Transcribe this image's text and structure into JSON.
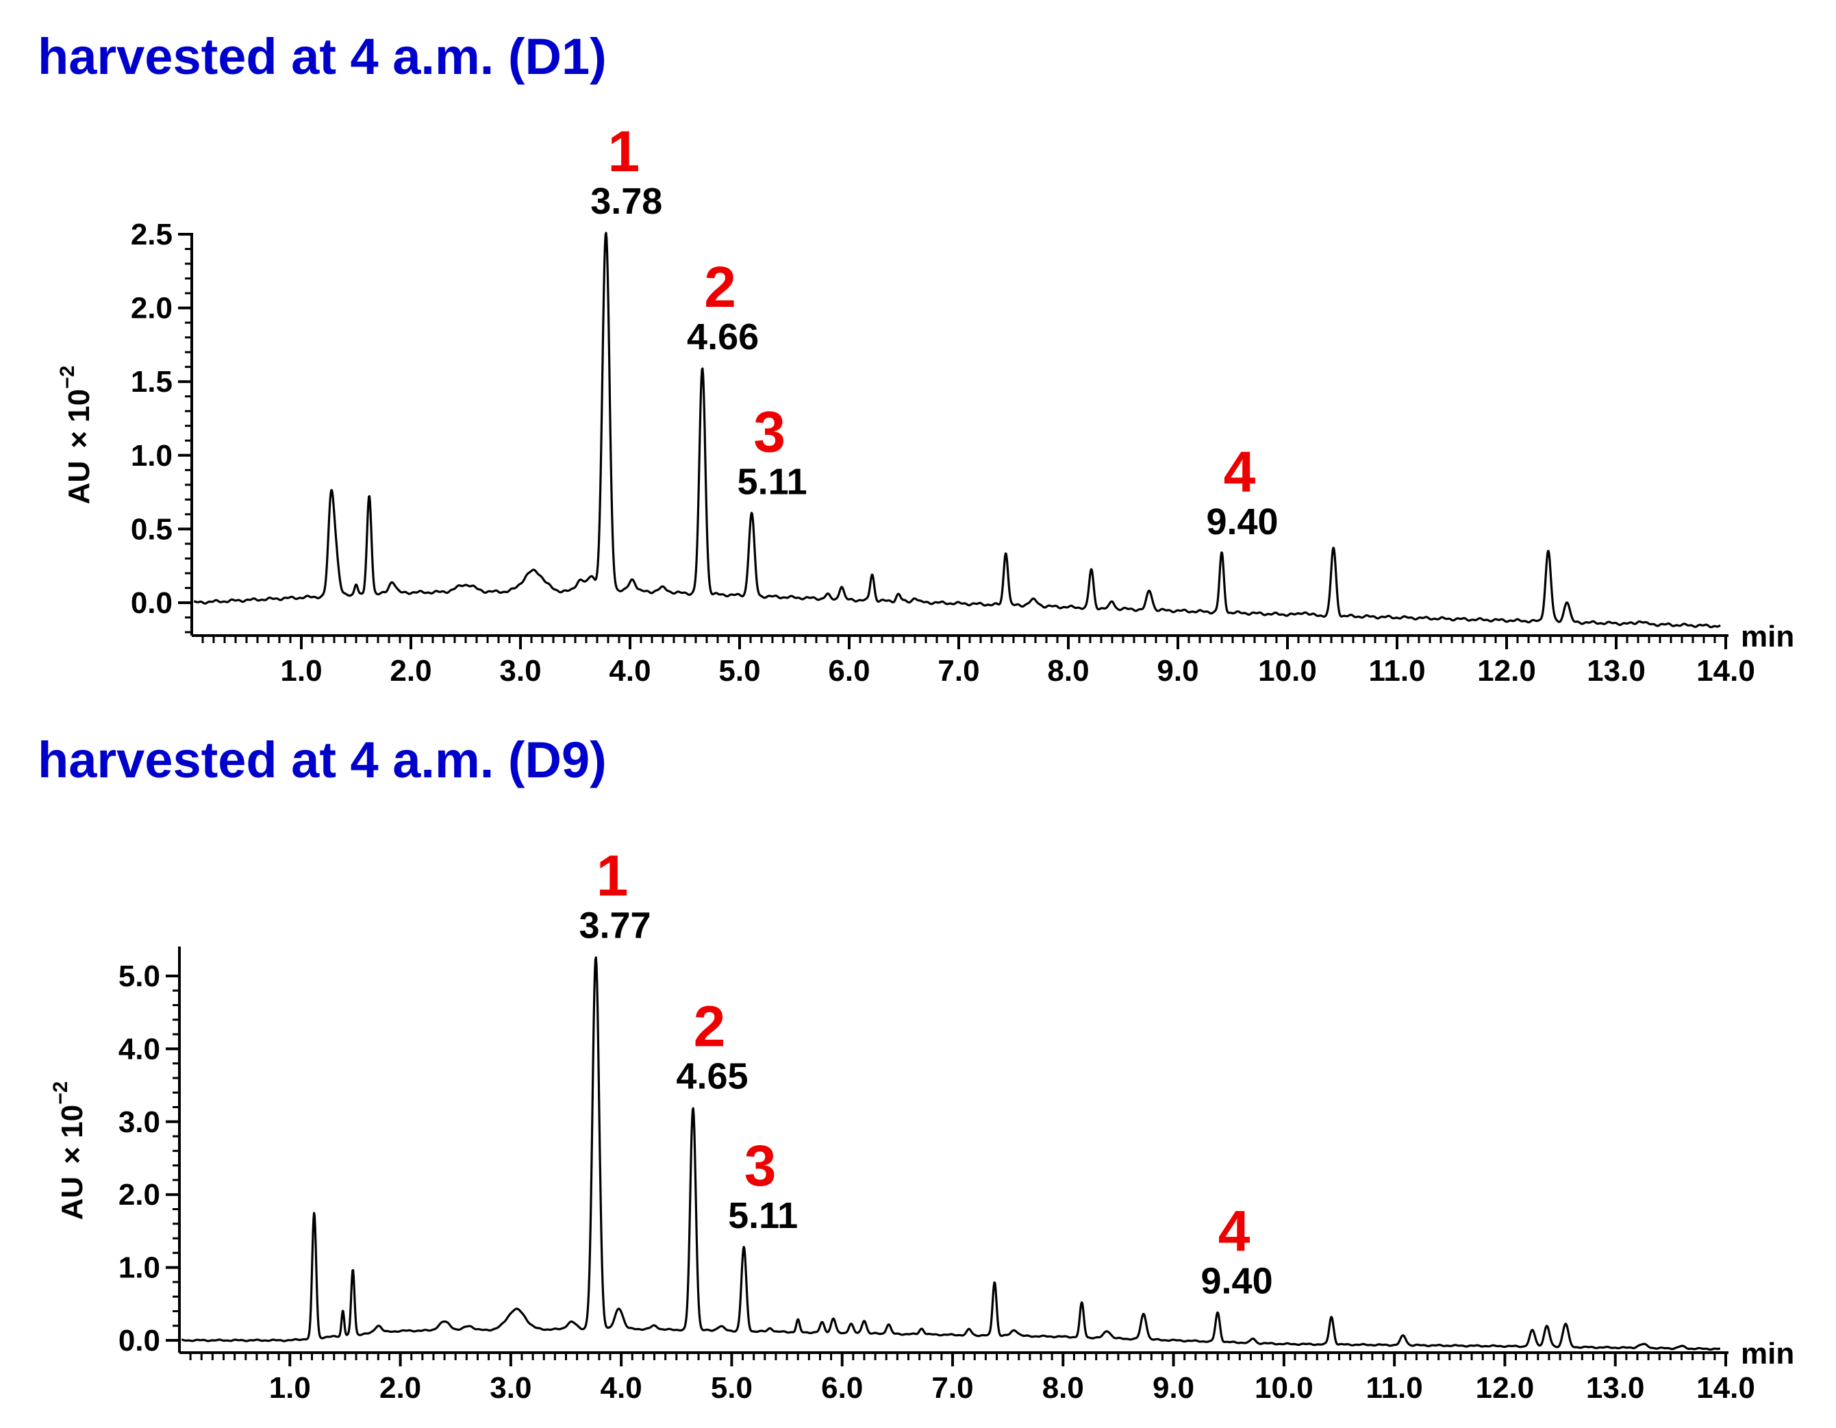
{
  "chart_data": [
    {
      "type": "line",
      "title": "harvested at 4 a.m. (D1)",
      "ylabel": "AU",
      "ylabel_multiplier": "× 10",
      "ylabel_exponent": "−2",
      "xlabel": "min",
      "xlim": [
        0,
        14.0
      ],
      "ylim": [
        -0.2,
        2.55
      ],
      "x_ticks": [
        "1.0",
        "2.0",
        "3.0",
        "4.0",
        "5.0",
        "6.0",
        "7.0",
        "8.0",
        "9.0",
        "10.0",
        "11.0",
        "12.0",
        "13.0",
        "14.0"
      ],
      "y_ticks": [
        "0.0",
        "0.5",
        "1.0",
        "1.5",
        "2.0",
        "2.5"
      ],
      "line_color": "#000000",
      "baseline": [
        [
          0,
          0.0
        ],
        [
          2,
          0.07
        ],
        [
          4,
          0.08
        ],
        [
          6,
          0.02
        ],
        [
          8,
          -0.03
        ],
        [
          10,
          -0.08
        ],
        [
          12,
          -0.12
        ],
        [
          14,
          -0.16
        ]
      ],
      "peaks": [
        {
          "rt": 1.27,
          "height": 0.58,
          "width": 0.025
        },
        {
          "rt": 1.31,
          "height": 0.3,
          "width": 0.03
        },
        {
          "rt": 1.5,
          "height": 0.08,
          "width": 0.015
        },
        {
          "rt": 1.62,
          "height": 0.67,
          "width": 0.02
        },
        {
          "rt": 1.83,
          "height": 0.08,
          "width": 0.03
        },
        {
          "rt": 2.5,
          "height": 0.05,
          "width": 0.08
        },
        {
          "rt": 3.12,
          "height": 0.14,
          "width": 0.09
        },
        {
          "rt": 3.55,
          "height": 0.08,
          "width": 0.04
        },
        {
          "rt": 3.65,
          "height": 0.1,
          "width": 0.03
        },
        {
          "rt": 3.78,
          "height": 2.43,
          "width": 0.032
        },
        {
          "rt": 4.02,
          "height": 0.08,
          "width": 0.03
        },
        {
          "rt": 4.3,
          "height": 0.03,
          "width": 0.04
        },
        {
          "rt": 4.66,
          "height": 1.53,
          "width": 0.027
        },
        {
          "rt": 5.11,
          "height": 0.56,
          "width": 0.025
        },
        {
          "rt": 5.8,
          "height": 0.03,
          "width": 0.02
        },
        {
          "rt": 5.93,
          "height": 0.09,
          "width": 0.02
        },
        {
          "rt": 6.21,
          "height": 0.18,
          "width": 0.018
        },
        {
          "rt": 6.45,
          "height": 0.05,
          "width": 0.02
        },
        {
          "rt": 6.6,
          "height": 0.03,
          "width": 0.02
        },
        {
          "rt": 7.43,
          "height": 0.36,
          "width": 0.02
        },
        {
          "rt": 7.68,
          "height": 0.04,
          "width": 0.04
        },
        {
          "rt": 8.21,
          "height": 0.26,
          "width": 0.02
        },
        {
          "rt": 8.4,
          "height": 0.05,
          "width": 0.02
        },
        {
          "rt": 8.74,
          "height": 0.13,
          "width": 0.025
        },
        {
          "rt": 9.4,
          "height": 0.4,
          "width": 0.02
        },
        {
          "rt": 10.15,
          "height": 0.02,
          "width": 0.03
        },
        {
          "rt": 10.42,
          "height": 0.46,
          "width": 0.023
        },
        {
          "rt": 12.38,
          "height": 0.48,
          "width": 0.025
        },
        {
          "rt": 12.55,
          "height": 0.14,
          "width": 0.025
        },
        {
          "rt": 13.22,
          "height": 0.02,
          "width": 0.03
        }
      ],
      "annotations": [
        {
          "peak": "1",
          "rt_label": "3.78",
          "x": 3.78
        },
        {
          "peak": "2",
          "rt_label": "4.66",
          "x": 4.66
        },
        {
          "peak": "3",
          "rt_label": "5.11",
          "x": 5.11
        },
        {
          "peak": "4",
          "rt_label": "9.40",
          "x": 9.4
        }
      ]
    },
    {
      "type": "line",
      "title": "harvested at 4 a.m. (D9)",
      "ylabel": "AU",
      "ylabel_multiplier": "× 10",
      "ylabel_exponent": "−2",
      "xlabel": "min",
      "xlim": [
        0,
        14.0
      ],
      "ylim": [
        -0.15,
        5.35
      ],
      "x_ticks": [
        "1.0",
        "2.0",
        "3.0",
        "4.0",
        "5.0",
        "6.0",
        "7.0",
        "8.0",
        "9.0",
        "10.0",
        "11.0",
        "12.0",
        "13.0",
        "14.0"
      ],
      "y_ticks": [
        "0.0",
        "1.0",
        "2.0",
        "3.0",
        "4.0",
        "5.0"
      ],
      "line_color": "#000000",
      "baseline": [
        [
          0,
          0.0
        ],
        [
          1.0,
          0.0
        ],
        [
          2,
          0.13
        ],
        [
          4,
          0.16
        ],
        [
          6,
          0.1
        ],
        [
          8,
          0.05
        ],
        [
          10,
          -0.05
        ],
        [
          12,
          -0.08
        ],
        [
          14,
          -0.12
        ]
      ],
      "peaks": [
        {
          "rt": 1.22,
          "height": 1.72,
          "width": 0.018
        },
        {
          "rt": 1.48,
          "height": 0.35,
          "width": 0.012
        },
        {
          "rt": 1.57,
          "height": 0.9,
          "width": 0.015
        },
        {
          "rt": 1.8,
          "height": 0.1,
          "width": 0.03
        },
        {
          "rt": 2.4,
          "height": 0.12,
          "width": 0.05
        },
        {
          "rt": 2.62,
          "height": 0.06,
          "width": 0.04
        },
        {
          "rt": 3.05,
          "height": 0.28,
          "width": 0.08
        },
        {
          "rt": 3.55,
          "height": 0.1,
          "width": 0.04
        },
        {
          "rt": 3.77,
          "height": 5.1,
          "width": 0.03
        },
        {
          "rt": 3.98,
          "height": 0.28,
          "width": 0.035
        },
        {
          "rt": 4.3,
          "height": 0.05,
          "width": 0.03
        },
        {
          "rt": 4.65,
          "height": 3.05,
          "width": 0.025
        },
        {
          "rt": 4.9,
          "height": 0.06,
          "width": 0.03
        },
        {
          "rt": 5.11,
          "height": 1.15,
          "width": 0.022
        },
        {
          "rt": 5.35,
          "height": 0.05,
          "width": 0.02
        },
        {
          "rt": 5.6,
          "height": 0.17,
          "width": 0.015
        },
        {
          "rt": 5.82,
          "height": 0.14,
          "width": 0.02
        },
        {
          "rt": 5.92,
          "height": 0.2,
          "width": 0.02
        },
        {
          "rt": 6.08,
          "height": 0.13,
          "width": 0.02
        },
        {
          "rt": 6.2,
          "height": 0.18,
          "width": 0.02
        },
        {
          "rt": 6.42,
          "height": 0.13,
          "width": 0.02
        },
        {
          "rt": 6.72,
          "height": 0.08,
          "width": 0.02
        },
        {
          "rt": 7.15,
          "height": 0.08,
          "width": 0.02
        },
        {
          "rt": 7.38,
          "height": 0.74,
          "width": 0.018
        },
        {
          "rt": 7.56,
          "height": 0.08,
          "width": 0.03
        },
        {
          "rt": 8.17,
          "height": 0.47,
          "width": 0.018
        },
        {
          "rt": 8.4,
          "height": 0.1,
          "width": 0.03
        },
        {
          "rt": 8.73,
          "height": 0.35,
          "width": 0.025
        },
        {
          "rt": 9.4,
          "height": 0.4,
          "width": 0.02
        },
        {
          "rt": 9.72,
          "height": 0.06,
          "width": 0.02
        },
        {
          "rt": 10.43,
          "height": 0.38,
          "width": 0.02
        },
        {
          "rt": 11.08,
          "height": 0.13,
          "width": 0.025
        },
        {
          "rt": 12.25,
          "height": 0.22,
          "width": 0.025
        },
        {
          "rt": 12.38,
          "height": 0.28,
          "width": 0.025
        },
        {
          "rt": 12.55,
          "height": 0.32,
          "width": 0.025
        },
        {
          "rt": 13.25,
          "height": 0.05,
          "width": 0.04
        },
        {
          "rt": 13.6,
          "height": 0.03,
          "width": 0.03
        }
      ],
      "annotations": [
        {
          "peak": "1",
          "rt_label": "3.77",
          "x": 3.77
        },
        {
          "peak": "2",
          "rt_label": "4.65",
          "x": 4.65
        },
        {
          "peak": "3",
          "rt_label": "5.11",
          "x": 5.11
        },
        {
          "peak": "4",
          "rt_label": "9.40",
          "x": 9.4
        }
      ]
    }
  ]
}
